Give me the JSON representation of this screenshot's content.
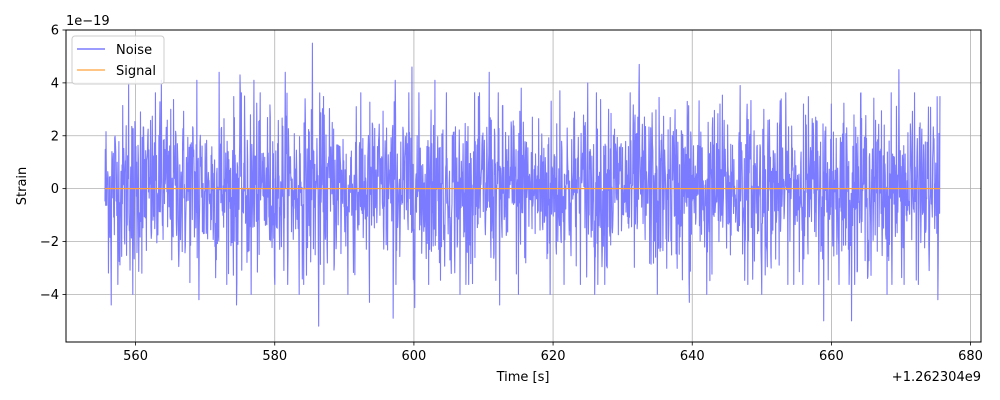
{
  "chart_data": {
    "type": "line",
    "xlabel": "Time [s]",
    "ylabel": "Strain",
    "x_offset_label": "+1.262304e9",
    "y_exponent_label": "1e−19",
    "xlim": [
      550,
      681.5
    ],
    "ylim": [
      -5.8,
      6.0
    ],
    "x_ticks": [
      560,
      580,
      600,
      620,
      640,
      660,
      680
    ],
    "x_tick_labels": [
      "560",
      "580",
      "600",
      "620",
      "640",
      "660",
      "680"
    ],
    "y_ticks": [
      -4,
      -2,
      0,
      2,
      4,
      6
    ],
    "y_tick_labels": [
      "−4",
      "−2",
      "0",
      "2",
      "4",
      "6"
    ],
    "grid": true,
    "legend_position": "top-left",
    "x_range_data": [
      555.6,
      675.6
    ],
    "series": [
      {
        "name": "Noise",
        "color": "#7b7bff",
        "style": "dense random noise",
        "typical_amplitude": 2.5,
        "peaks": [
          {
            "x": 556.5,
            "y": 3.5
          },
          {
            "x": 559.0,
            "y": 4.0
          },
          {
            "x": 560.7,
            "y": 2.9
          },
          {
            "x": 563.7,
            "y": 4.1
          },
          {
            "x": 568.8,
            "y": 4.1
          },
          {
            "x": 572.0,
            "y": 4.4
          },
          {
            "x": 575.0,
            "y": 4.3
          },
          {
            "x": 577.0,
            "y": 4.1
          },
          {
            "x": 581.5,
            "y": 4.4
          },
          {
            "x": 585.4,
            "y": 5.5
          },
          {
            "x": 591.7,
            "y": 3.1
          },
          {
            "x": 597.3,
            "y": 4.1
          },
          {
            "x": 599.7,
            "y": 4.6
          },
          {
            "x": 603.0,
            "y": 4.1
          },
          {
            "x": 610.8,
            "y": 4.4
          },
          {
            "x": 615.4,
            "y": 3.8
          },
          {
            "x": 621.0,
            "y": 3.7
          },
          {
            "x": 625.0,
            "y": 4.0
          },
          {
            "x": 628.0,
            "y": 3.0
          },
          {
            "x": 632.4,
            "y": 4.7
          },
          {
            "x": 639.3,
            "y": 3.3
          },
          {
            "x": 644.0,
            "y": 3.2
          },
          {
            "x": 646.9,
            "y": 3.9
          },
          {
            "x": 650.3,
            "y": 3.0
          },
          {
            "x": 656.0,
            "y": 3.2
          },
          {
            "x": 660.0,
            "y": 3.2
          },
          {
            "x": 664.2,
            "y": 3.6
          },
          {
            "x": 669.7,
            "y": 4.5
          },
          {
            "x": 675.6,
            "y": 3.5
          }
        ],
        "troughs": [
          {
            "x": 556.5,
            "y": -4.4
          },
          {
            "x": 559.6,
            "y": -4.0
          },
          {
            "x": 569.1,
            "y": -4.2
          },
          {
            "x": 574.5,
            "y": -4.4
          },
          {
            "x": 576.6,
            "y": -4.0
          },
          {
            "x": 583.5,
            "y": -4.0
          },
          {
            "x": 586.3,
            "y": -5.2
          },
          {
            "x": 590.5,
            "y": -4.0
          },
          {
            "x": 593.6,
            "y": -4.3
          },
          {
            "x": 597.0,
            "y": -4.9
          },
          {
            "x": 600.1,
            "y": -4.5
          },
          {
            "x": 606.6,
            "y": -4.0
          },
          {
            "x": 612.3,
            "y": -4.4
          },
          {
            "x": 615.0,
            "y": -4.0
          },
          {
            "x": 619.6,
            "y": -4.0
          },
          {
            "x": 626.0,
            "y": -4.0
          },
          {
            "x": 635.0,
            "y": -4.0
          },
          {
            "x": 639.6,
            "y": -4.3
          },
          {
            "x": 642.1,
            "y": -4.0
          },
          {
            "x": 650.0,
            "y": -4.0
          },
          {
            "x": 658.9,
            "y": -5.0
          },
          {
            "x": 662.9,
            "y": -5.0
          },
          {
            "x": 668.0,
            "y": -4.0
          },
          {
            "x": 675.3,
            "y": -4.2
          }
        ]
      },
      {
        "name": "Signal",
        "color": "#ffa23a",
        "x": [
          555.6,
          675.6
        ],
        "values": [
          0,
          0
        ]
      }
    ]
  }
}
